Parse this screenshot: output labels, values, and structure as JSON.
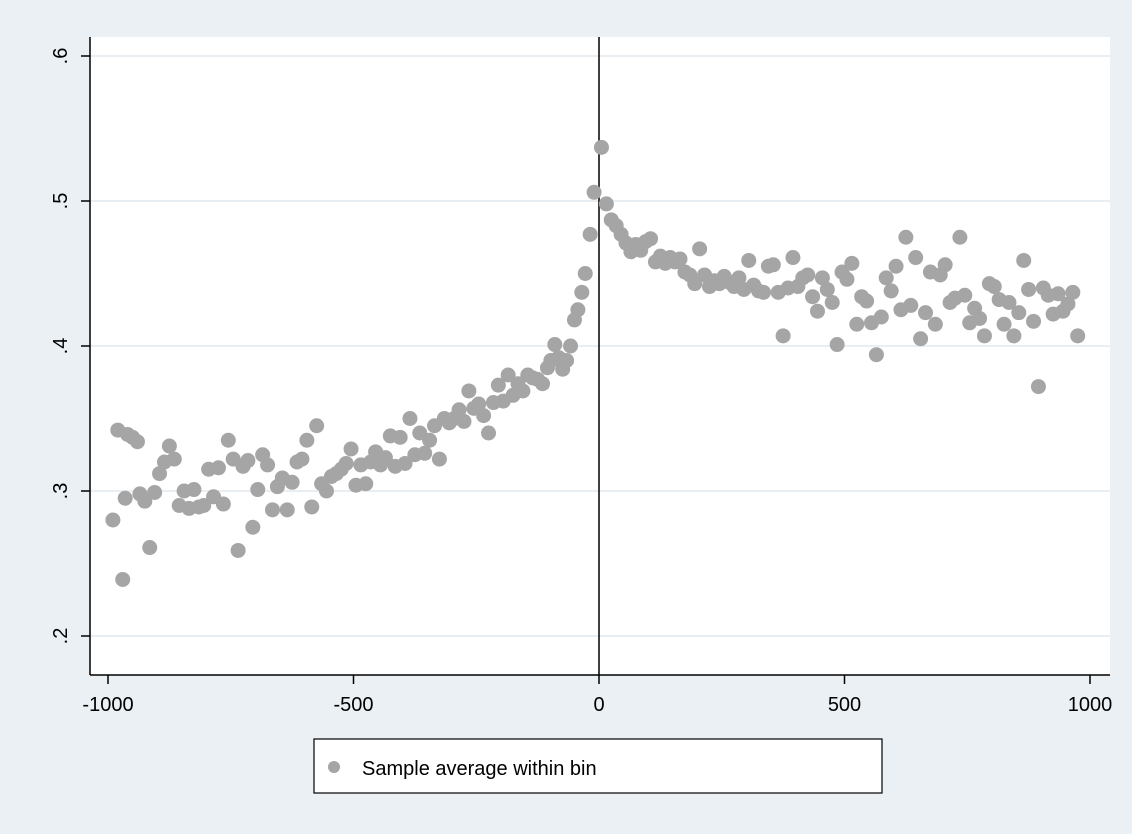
{
  "colors": {
    "background": "#eaf0f4",
    "plot_background": "#ffffff",
    "gridline": "#e1e9ee",
    "marker": "#a5a5a5",
    "axis": "#000000",
    "cutoff_line": "#000000"
  },
  "legend": {
    "marker_icon": "circle-marker-icon",
    "label": "Sample average within bin"
  },
  "chart_data": {
    "type": "scatter",
    "xlim": [
      -1000,
      1000
    ],
    "ylim": [
      0.18,
      0.61
    ],
    "xticks": [
      -1000,
      -500,
      0,
      500,
      1000
    ],
    "xtick_labels": [
      "-1000",
      "-500",
      "0",
      "500",
      "1000"
    ],
    "yticks": [
      0.2,
      0.3,
      0.4,
      0.5,
      0.6
    ],
    "ytick_labels": [
      ".2",
      ".3",
      ".4",
      ".5",
      ".6"
    ],
    "ytick_label_rotation": "vertical",
    "grid": "horizontal",
    "vertical_reference_line_x": 0,
    "legend_position": "bottom-center",
    "title": "",
    "xlabel": "",
    "ylabel": "",
    "series": [
      {
        "name": "Sample average within bin",
        "points": [
          [
            -990,
            0.28
          ],
          [
            -980,
            0.342
          ],
          [
            -970,
            0.239
          ],
          [
            -965,
            0.295
          ],
          [
            -960,
            0.339
          ],
          [
            -950,
            0.337
          ],
          [
            -940,
            0.334
          ],
          [
            -935,
            0.298
          ],
          [
            -925,
            0.293
          ],
          [
            -915,
            0.261
          ],
          [
            -905,
            0.299
          ],
          [
            -895,
            0.312
          ],
          [
            -885,
            0.32
          ],
          [
            -875,
            0.331
          ],
          [
            -865,
            0.322
          ],
          [
            -855,
            0.29
          ],
          [
            -845,
            0.3
          ],
          [
            -835,
            0.288
          ],
          [
            -825,
            0.301
          ],
          [
            -815,
            0.289
          ],
          [
            -805,
            0.29
          ],
          [
            -795,
            0.315
          ],
          [
            -785,
            0.296
          ],
          [
            -775,
            0.316
          ],
          [
            -765,
            0.291
          ],
          [
            -755,
            0.335
          ],
          [
            -745,
            0.322
          ],
          [
            -735,
            0.259
          ],
          [
            -725,
            0.317
          ],
          [
            -715,
            0.321
          ],
          [
            -705,
            0.275
          ],
          [
            -695,
            0.301
          ],
          [
            -685,
            0.325
          ],
          [
            -675,
            0.318
          ],
          [
            -665,
            0.287
          ],
          [
            -655,
            0.303
          ],
          [
            -645,
            0.309
          ],
          [
            -635,
            0.287
          ],
          [
            -625,
            0.306
          ],
          [
            -615,
            0.32
          ],
          [
            -605,
            0.322
          ],
          [
            -595,
            0.335
          ],
          [
            -585,
            0.289
          ],
          [
            -575,
            0.345
          ],
          [
            -565,
            0.305
          ],
          [
            -555,
            0.3
          ],
          [
            -545,
            0.31
          ],
          [
            -535,
            0.312
          ],
          [
            -525,
            0.315
          ],
          [
            -515,
            0.319
          ],
          [
            -505,
            0.329
          ],
          [
            -495,
            0.304
          ],
          [
            -485,
            0.318
          ],
          [
            -475,
            0.305
          ],
          [
            -465,
            0.32
          ],
          [
            -455,
            0.327
          ],
          [
            -445,
            0.318
          ],
          [
            -435,
            0.323
          ],
          [
            -425,
            0.338
          ],
          [
            -415,
            0.317
          ],
          [
            -405,
            0.337
          ],
          [
            -395,
            0.319
          ],
          [
            -385,
            0.35
          ],
          [
            -375,
            0.325
          ],
          [
            -365,
            0.34
          ],
          [
            -355,
            0.326
          ],
          [
            -345,
            0.335
          ],
          [
            -335,
            0.345
          ],
          [
            -325,
            0.322
          ],
          [
            -315,
            0.35
          ],
          [
            -305,
            0.347
          ],
          [
            -295,
            0.35
          ],
          [
            -285,
            0.356
          ],
          [
            -275,
            0.348
          ],
          [
            -265,
            0.369
          ],
          [
            -255,
            0.357
          ],
          [
            -245,
            0.36
          ],
          [
            -235,
            0.352
          ],
          [
            -225,
            0.34
          ],
          [
            -215,
            0.361
          ],
          [
            -205,
            0.373
          ],
          [
            -195,
            0.362
          ],
          [
            -185,
            0.38
          ],
          [
            -175,
            0.366
          ],
          [
            -165,
            0.374
          ],
          [
            -155,
            0.369
          ],
          [
            -145,
            0.38
          ],
          [
            -135,
            0.378
          ],
          [
            -125,
            0.377
          ],
          [
            -115,
            0.374
          ],
          [
            -105,
            0.385
          ],
          [
            -98,
            0.39
          ],
          [
            -90,
            0.401
          ],
          [
            -82,
            0.392
          ],
          [
            -74,
            0.384
          ],
          [
            -66,
            0.39
          ],
          [
            -58,
            0.4
          ],
          [
            -50,
            0.418
          ],
          [
            -43,
            0.425
          ],
          [
            -35,
            0.437
          ],
          [
            -28,
            0.45
          ],
          [
            -18,
            0.477
          ],
          [
            -10,
            0.506
          ],
          [
            5,
            0.537
          ],
          [
            15,
            0.498
          ],
          [
            25,
            0.487
          ],
          [
            35,
            0.483
          ],
          [
            45,
            0.477
          ],
          [
            55,
            0.471
          ],
          [
            65,
            0.465
          ],
          [
            75,
            0.47
          ],
          [
            85,
            0.466
          ],
          [
            95,
            0.472
          ],
          [
            105,
            0.474
          ],
          [
            115,
            0.458
          ],
          [
            125,
            0.462
          ],
          [
            135,
            0.457
          ],
          [
            145,
            0.461
          ],
          [
            155,
            0.458
          ],
          [
            165,
            0.46
          ],
          [
            175,
            0.451
          ],
          [
            185,
            0.449
          ],
          [
            195,
            0.443
          ],
          [
            205,
            0.467
          ],
          [
            215,
            0.449
          ],
          [
            225,
            0.441
          ],
          [
            235,
            0.445
          ],
          [
            245,
            0.443
          ],
          [
            255,
            0.448
          ],
          [
            265,
            0.444
          ],
          [
            275,
            0.441
          ],
          [
            285,
            0.447
          ],
          [
            295,
            0.439
          ],
          [
            305,
            0.459
          ],
          [
            315,
            0.442
          ],
          [
            325,
            0.438
          ],
          [
            335,
            0.437
          ],
          [
            345,
            0.455
          ],
          [
            355,
            0.456
          ],
          [
            365,
            0.437
          ],
          [
            375,
            0.407
          ],
          [
            385,
            0.44
          ],
          [
            395,
            0.461
          ],
          [
            405,
            0.441
          ],
          [
            415,
            0.447
          ],
          [
            425,
            0.449
          ],
          [
            435,
            0.434
          ],
          [
            445,
            0.424
          ],
          [
            455,
            0.447
          ],
          [
            465,
            0.439
          ],
          [
            475,
            0.43
          ],
          [
            485,
            0.401
          ],
          [
            495,
            0.451
          ],
          [
            505,
            0.446
          ],
          [
            515,
            0.457
          ],
          [
            525,
            0.415
          ],
          [
            535,
            0.434
          ],
          [
            545,
            0.431
          ],
          [
            555,
            0.416
          ],
          [
            565,
            0.394
          ],
          [
            575,
            0.42
          ],
          [
            585,
            0.447
          ],
          [
            595,
            0.438
          ],
          [
            605,
            0.455
          ],
          [
            615,
            0.425
          ],
          [
            625,
            0.475
          ],
          [
            635,
            0.428
          ],
          [
            645,
            0.461
          ],
          [
            655,
            0.405
          ],
          [
            665,
            0.423
          ],
          [
            675,
            0.451
          ],
          [
            685,
            0.415
          ],
          [
            695,
            0.449
          ],
          [
            705,
            0.456
          ],
          [
            715,
            0.43
          ],
          [
            725,
            0.433
          ],
          [
            735,
            0.475
          ],
          [
            745,
            0.435
          ],
          [
            755,
            0.416
          ],
          [
            765,
            0.426
          ],
          [
            775,
            0.419
          ],
          [
            785,
            0.407
          ],
          [
            795,
            0.443
          ],
          [
            805,
            0.441
          ],
          [
            815,
            0.432
          ],
          [
            825,
            0.415
          ],
          [
            835,
            0.43
          ],
          [
            845,
            0.407
          ],
          [
            855,
            0.423
          ],
          [
            865,
            0.459
          ],
          [
            875,
            0.439
          ],
          [
            885,
            0.417
          ],
          [
            895,
            0.372
          ],
          [
            905,
            0.44
          ],
          [
            915,
            0.435
          ],
          [
            925,
            0.422
          ],
          [
            935,
            0.436
          ],
          [
            945,
            0.424
          ],
          [
            955,
            0.429
          ],
          [
            965,
            0.437
          ],
          [
            975,
            0.407
          ]
        ]
      }
    ]
  }
}
